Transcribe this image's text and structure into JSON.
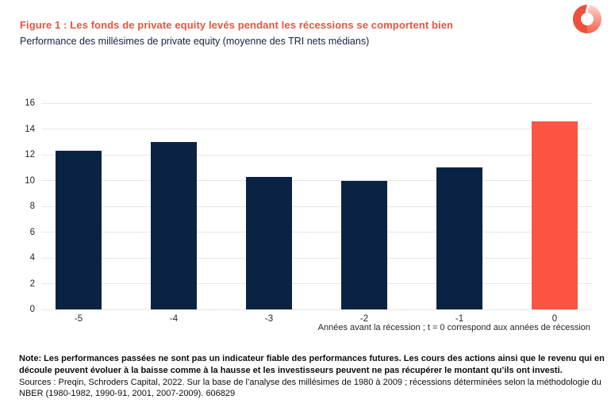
{
  "header": {
    "title": "Figure 1 : Les fonds de private equity levés pendant les récessions se comportent bien",
    "subtitle": "Performance des millésimes de private equity (moyenne des TRI nets médians)"
  },
  "colors": {
    "title_red": "#e8543f",
    "bar_navy": "#0b2343",
    "bar_highlight": "#fb5442",
    "gridline": "#e6e6e6",
    "logo_red": "#ec4f3a"
  },
  "chart_data": {
    "type": "bar",
    "categories": [
      "-5",
      "-4",
      "-3",
      "-2",
      "-1",
      "0"
    ],
    "values": [
      12.3,
      13.0,
      10.3,
      10.0,
      11.0,
      14.6
    ],
    "highlight_index": 5,
    "title": "Performance des millésimes de private equity (moyenne des TRI nets médians)",
    "xlabel": "Années avant la récession ; t = 0 correspond aux années de récession",
    "ylabel": "",
    "ylim": [
      0,
      16
    ],
    "yticks": [
      0,
      2,
      4,
      6,
      8,
      10,
      12,
      14,
      16
    ],
    "grid": true,
    "legend": "none"
  },
  "footnote": {
    "bold": "Note: Les performances passées ne sont pas un indicateur fiable des performances futures. Les cours des actions ainsi que le revenu qui en découle peuvent évoluer à la baisse comme à la hausse et les investisseurs peuvent ne pas récupérer le montant qu’ils ont investi.",
    "sources": "Sources : Preqin, Schroders Capital, 2022. Sur la base de l’analyse des millésimes de 1980 à 2009 ; récessions déterminées selon la méthodologie du NBER (1980-1982, 1990-91, 2001, 2007-2009). 606829"
  }
}
